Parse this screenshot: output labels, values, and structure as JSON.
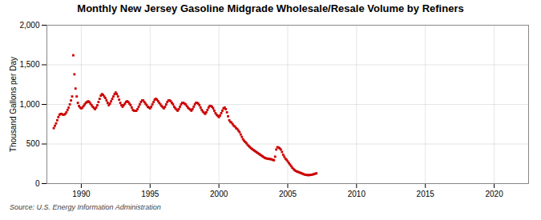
{
  "chart_data": {
    "type": "scatter",
    "title": "Monthly New Jersey Gasoline Midgrade Wholesale/Resale Volume by Refiners",
    "ylabel": "Thousand Gallons per Day",
    "source": "Source: U.S. Energy Information Administration",
    "color": "#cc0000",
    "marker": "square",
    "grid": true,
    "xlim": [
      1987.5,
      2022.5
    ],
    "xticks": [
      1990,
      1995,
      2000,
      2005,
      2010,
      2015,
      2020
    ],
    "ylim": [
      0,
      2000
    ],
    "yticks": [
      0,
      500,
      {
        "value": 1000,
        "label": "1,000"
      },
      {
        "value": 1500,
        "label": "1,500"
      },
      {
        "value": 2000,
        "label": "2,000"
      }
    ],
    "x": [
      1988.0,
      1988.083,
      1988.167,
      1988.25,
      1988.333,
      1988.417,
      1988.5,
      1988.583,
      1988.667,
      1988.75,
      1988.833,
      1988.917,
      1989.0,
      1989.083,
      1989.167,
      1989.25,
      1989.333,
      1989.417,
      1989.5,
      1989.583,
      1989.667,
      1989.75,
      1989.833,
      1989.917,
      1990.0,
      1990.083,
      1990.167,
      1990.25,
      1990.333,
      1990.417,
      1990.5,
      1990.583,
      1990.667,
      1990.75,
      1990.833,
      1990.917,
      1991.0,
      1991.083,
      1991.167,
      1991.25,
      1991.333,
      1991.417,
      1991.5,
      1991.583,
      1991.667,
      1991.75,
      1991.833,
      1991.917,
      1992.0,
      1992.083,
      1992.167,
      1992.25,
      1992.333,
      1992.417,
      1992.5,
      1992.583,
      1992.667,
      1992.75,
      1992.833,
      1992.917,
      1993.0,
      1993.083,
      1993.167,
      1993.25,
      1993.333,
      1993.417,
      1993.5,
      1993.583,
      1993.667,
      1993.75,
      1993.833,
      1993.917,
      1994.0,
      1994.083,
      1994.167,
      1994.25,
      1994.333,
      1994.417,
      1994.5,
      1994.583,
      1994.667,
      1994.75,
      1994.833,
      1994.917,
      1995.0,
      1995.083,
      1995.167,
      1995.25,
      1995.333,
      1995.417,
      1995.5,
      1995.583,
      1995.667,
      1995.75,
      1995.833,
      1995.917,
      1996.0,
      1996.083,
      1996.167,
      1996.25,
      1996.333,
      1996.417,
      1996.5,
      1996.583,
      1996.667,
      1996.75,
      1996.833,
      1996.917,
      1997.0,
      1997.083,
      1997.167,
      1997.25,
      1997.333,
      1997.417,
      1997.5,
      1997.583,
      1997.667,
      1997.75,
      1997.833,
      1997.917,
      1998.0,
      1998.083,
      1998.167,
      1998.25,
      1998.333,
      1998.417,
      1998.5,
      1998.583,
      1998.667,
      1998.75,
      1998.833,
      1998.917,
      1999.0,
      1999.083,
      1999.167,
      1999.25,
      1999.333,
      1999.417,
      1999.5,
      1999.583,
      1999.667,
      1999.75,
      1999.833,
      1999.917,
      2000.0,
      2000.083,
      2000.167,
      2000.25,
      2000.333,
      2000.417,
      2000.5,
      2000.583,
      2000.667,
      2000.75,
      2000.833,
      2000.917,
      2001.0,
      2001.083,
      2001.167,
      2001.25,
      2001.333,
      2001.417,
      2001.5,
      2001.583,
      2001.667,
      2001.75,
      2001.833,
      2001.917,
      2002.0,
      2002.083,
      2002.167,
      2002.25,
      2002.333,
      2002.417,
      2002.5,
      2002.583,
      2002.667,
      2002.75,
      2002.833,
      2002.917,
      2003.0,
      2003.083,
      2003.167,
      2003.25,
      2003.333,
      2003.417,
      2003.5,
      2003.583,
      2003.667,
      2003.75,
      2003.833,
      2003.917,
      2004.0,
      2004.083,
      2004.167,
      2004.25,
      2004.333,
      2004.417,
      2004.5,
      2004.583,
      2004.667,
      2004.75,
      2004.833,
      2004.917,
      2005.0,
      2005.083,
      2005.167,
      2005.25,
      2005.333,
      2005.417,
      2005.5,
      2005.583,
      2005.667,
      2005.75,
      2005.833,
      2005.917,
      2006.0,
      2006.083,
      2006.167,
      2006.25,
      2006.333,
      2006.417,
      2006.5,
      2006.583,
      2006.667,
      2006.75,
      2006.833,
      2006.917,
      2007.0,
      2007.083
    ],
    "values": [
      700,
      730,
      760,
      800,
      840,
      870,
      880,
      880,
      870,
      870,
      880,
      900,
      930,
      960,
      1000,
      1050,
      1100,
      1620,
      1380,
      1200,
      1100,
      1020,
      980,
      960,
      950,
      960,
      980,
      1000,
      1020,
      1030,
      1040,
      1030,
      1010,
      990,
      970,
      955,
      940,
      960,
      990,
      1030,
      1070,
      1110,
      1130,
      1120,
      1100,
      1080,
      1050,
      1020,
      990,
      1010,
      1040,
      1070,
      1100,
      1130,
      1150,
      1130,
      1100,
      1060,
      1020,
      990,
      970,
      990,
      1010,
      1030,
      1040,
      1030,
      1010,
      990,
      960,
      930,
      920,
      920,
      920,
      940,
      970,
      1000,
      1030,
      1050,
      1050,
      1030,
      1010,
      990,
      970,
      960,
      950,
      970,
      1000,
      1030,
      1060,
      1070,
      1060,
      1040,
      1020,
      1000,
      980,
      965,
      950,
      970,
      1000,
      1030,
      1050,
      1050,
      1040,
      1020,
      1000,
      970,
      950,
      935,
      920,
      940,
      970,
      1000,
      1020,
      1020,
      1010,
      1000,
      980,
      960,
      945,
      935,
      920,
      940,
      970,
      1000,
      1020,
      1020,
      1010,
      990,
      960,
      930,
      910,
      895,
      880,
      900,
      930,
      960,
      980,
      980,
      970,
      950,
      920,
      890,
      870,
      855,
      840,
      860,
      890,
      920,
      950,
      960,
      940,
      900,
      850,
      800,
      780,
      770,
      750,
      730,
      720,
      700,
      690,
      670,
      650,
      620,
      590,
      560,
      540,
      525,
      510,
      490,
      475,
      460,
      448,
      436,
      425,
      415,
      405,
      395,
      385,
      375,
      365,
      355,
      345,
      335,
      325,
      320,
      315,
      315,
      310,
      310,
      305,
      300,
      295,
      340,
      430,
      460,
      455,
      445,
      430,
      400,
      365,
      340,
      315,
      300,
      280,
      260,
      240,
      220,
      200,
      185,
      170,
      160,
      152,
      148,
      142,
      136,
      130,
      124,
      118,
      113,
      110,
      108,
      107,
      108,
      110,
      112,
      116,
      120,
      125,
      130
    ]
  }
}
